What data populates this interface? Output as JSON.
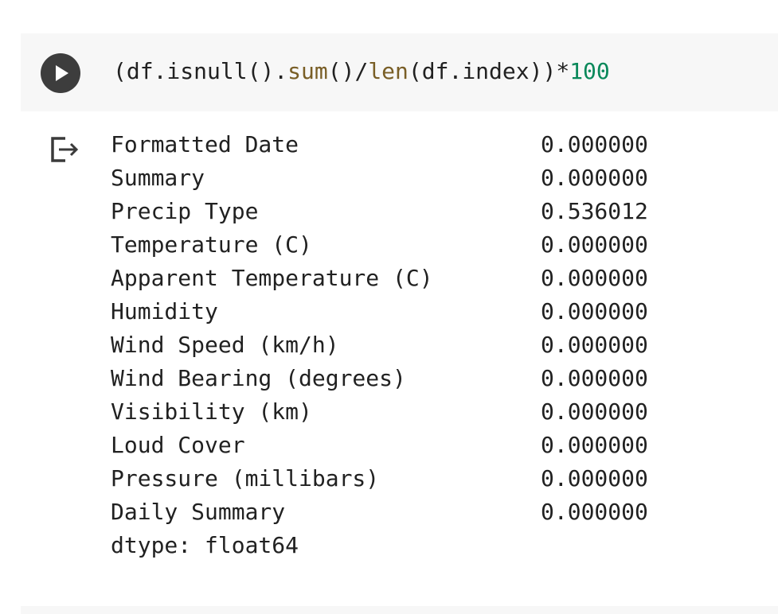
{
  "cell": {
    "code_tokens": [
      {
        "text": "(df.isnull().",
        "kind": "op"
      },
      {
        "text": "sum",
        "kind": "fn"
      },
      {
        "text": "()/",
        "kind": "op"
      },
      {
        "text": "len",
        "kind": "fn"
      },
      {
        "text": "(df.index))*",
        "kind": "op"
      },
      {
        "text": "100",
        "kind": "num"
      }
    ]
  },
  "output": {
    "rows": [
      {
        "name": "Formatted Date",
        "value": "0.000000"
      },
      {
        "name": "Summary",
        "value": "0.000000"
      },
      {
        "name": "Precip Type",
        "value": "0.536012"
      },
      {
        "name": "Temperature (C)",
        "value": "0.000000"
      },
      {
        "name": "Apparent Temperature (C)",
        "value": "0.000000"
      },
      {
        "name": "Humidity",
        "value": "0.000000"
      },
      {
        "name": "Wind Speed (km/h)",
        "value": "0.000000"
      },
      {
        "name": "Wind Bearing (degrees)",
        "value": "0.000000"
      },
      {
        "name": "Visibility (km)",
        "value": "0.000000"
      },
      {
        "name": "Loud Cover",
        "value": "0.000000"
      },
      {
        "name": "Pressure (millibars)",
        "value": "0.000000"
      },
      {
        "name": "Daily Summary",
        "value": "0.000000"
      }
    ],
    "dtype_line": "dtype: float64"
  },
  "icons": {
    "run": "play-icon",
    "output": "output-redirect-icon"
  },
  "colors": {
    "cell_background": "#f7f7f7",
    "run_button": "#3d3d3d",
    "function_name": "#795e26",
    "number_literal": "#09885a",
    "text": "#212121"
  }
}
